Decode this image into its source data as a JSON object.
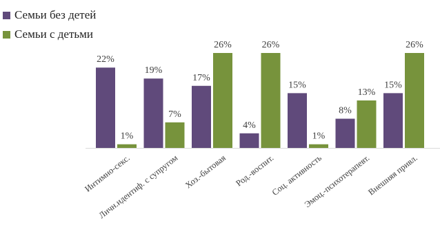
{
  "chart_data": {
    "type": "bar",
    "title": "",
    "xlabel": "",
    "ylabel": "",
    "ylim": [
      0,
      26
    ],
    "grid": false,
    "legend_position": "top-left",
    "value_format": "percent",
    "categories": [
      "Интимно-секс.",
      "Личн.идентиф. с супругом",
      "Хоз.-бытовая",
      "Род.-воспит.",
      "Соц. активность",
      "Эмоц.-психотерапевт.",
      "Внешняя привл."
    ],
    "series": [
      {
        "name": "Семьи без детей",
        "color": "#604A7B",
        "values": [
          22,
          19,
          17,
          4,
          15,
          8,
          15
        ]
      },
      {
        "name": "Семьи с детьми",
        "color": "#77933C",
        "values": [
          1,
          7,
          26,
          26,
          1,
          13,
          26
        ]
      }
    ]
  }
}
